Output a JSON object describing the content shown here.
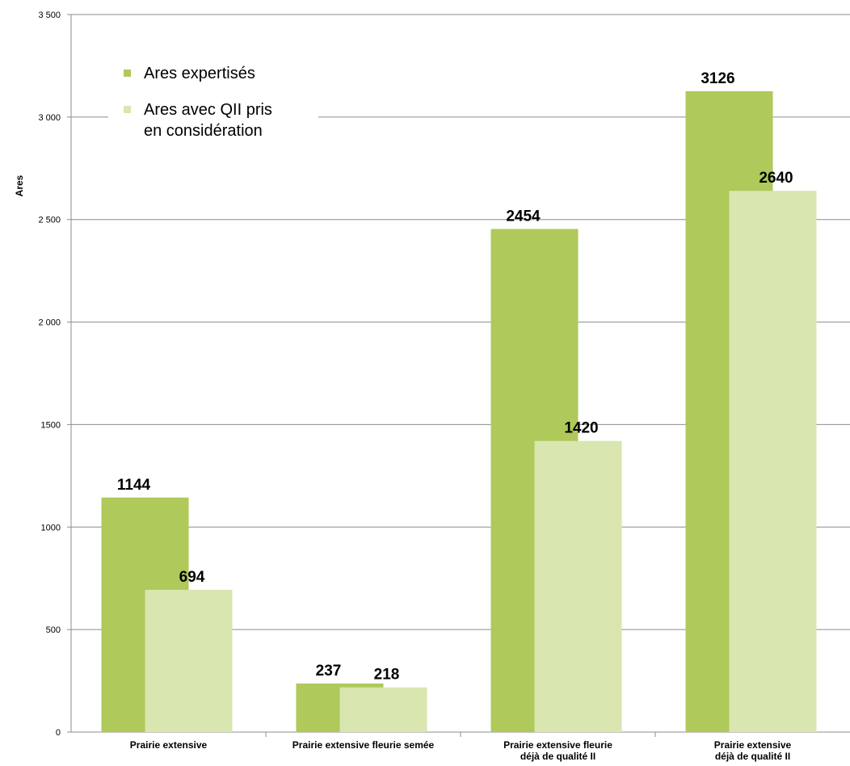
{
  "chart_data": {
    "type": "bar",
    "categories": [
      [
        "Prairie extensive"
      ],
      [
        "Prairie extensive fleurie semée"
      ],
      [
        "Prairie extensive fleurie",
        "déjà de qualité II"
      ],
      [
        "Prairie extensive",
        "déjà de qualité II"
      ]
    ],
    "series": [
      {
        "name": "Ares expertisés",
        "color": "#afc95a",
        "values": [
          1144,
          237,
          2454,
          3126
        ]
      },
      {
        "name": "Ares avec QII pris en considération",
        "legend_lines": [
          "Ares avec QII pris",
          "en considération"
        ],
        "color": "#d9e6b0",
        "values": [
          694,
          218,
          1420,
          2640
        ]
      }
    ],
    "data_labels": [
      [
        "1144",
        "237",
        "2454",
        "3126"
      ],
      [
        "694",
        "218",
        "1420",
        "2640"
      ]
    ],
    "ylabel": "Ares",
    "ylim": [
      0,
      3500
    ],
    "yticks": [
      0,
      500,
      1000,
      1500,
      2000,
      2500,
      3000,
      3500
    ],
    "ytick_labels": [
      "0",
      "500",
      "1000",
      "1500",
      "2 000",
      "2 500",
      "3 000",
      "3 500"
    ],
    "grid": true,
    "legend_position": "top-left"
  }
}
